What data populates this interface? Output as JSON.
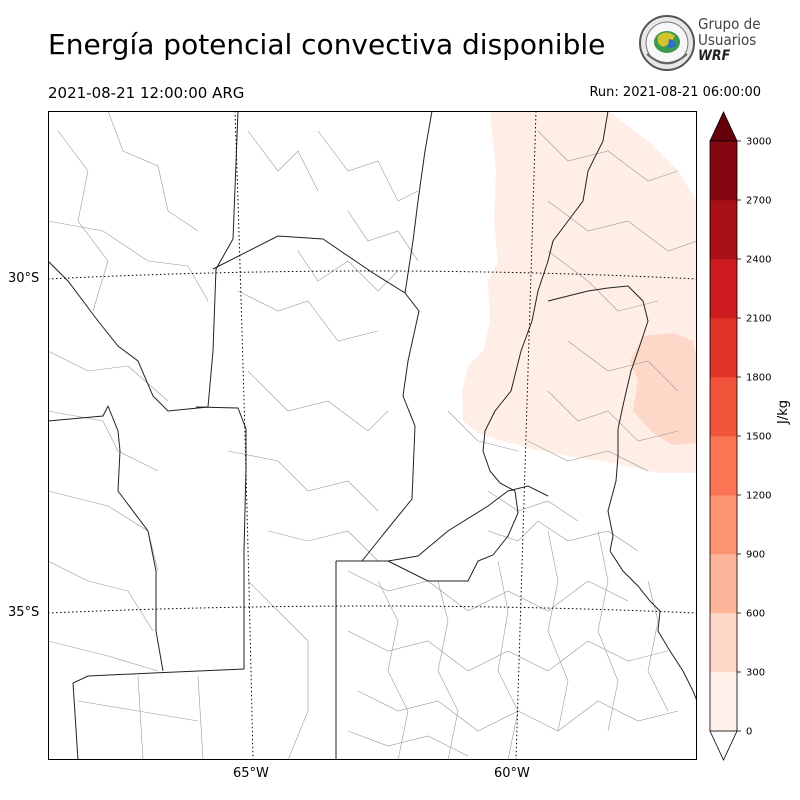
{
  "header": {
    "title": "Energía potencial convectiva disponible",
    "valid_time": "2021-08-21 12:00:00 ARG",
    "run": "Run: 2021-08-21 06:00:00"
  },
  "logo": {
    "line1": "Grupo de",
    "line2": "Usuarios",
    "line3": "WRF"
  },
  "map": {
    "lat_labels": [
      "30°S",
      "35°S"
    ],
    "lon_labels": [
      "65°W",
      "60°W"
    ],
    "field_colors": {
      "level_0_300": "#ffeee6",
      "level_300_600": "#fdd7c8"
    }
  },
  "colorbar": {
    "unit": "J/kg",
    "ticks": [
      "0",
      "300",
      "600",
      "900",
      "1200",
      "1500",
      "1800",
      "2100",
      "2400",
      "2700",
      "3000"
    ],
    "colors": [
      "#fff1ea",
      "#fdd7c8",
      "#fcb59b",
      "#fc9373",
      "#fb7453",
      "#f2533b",
      "#e13428",
      "#cc1a1e",
      "#a80f17",
      "#840711"
    ],
    "over_color": "#67000d"
  }
}
